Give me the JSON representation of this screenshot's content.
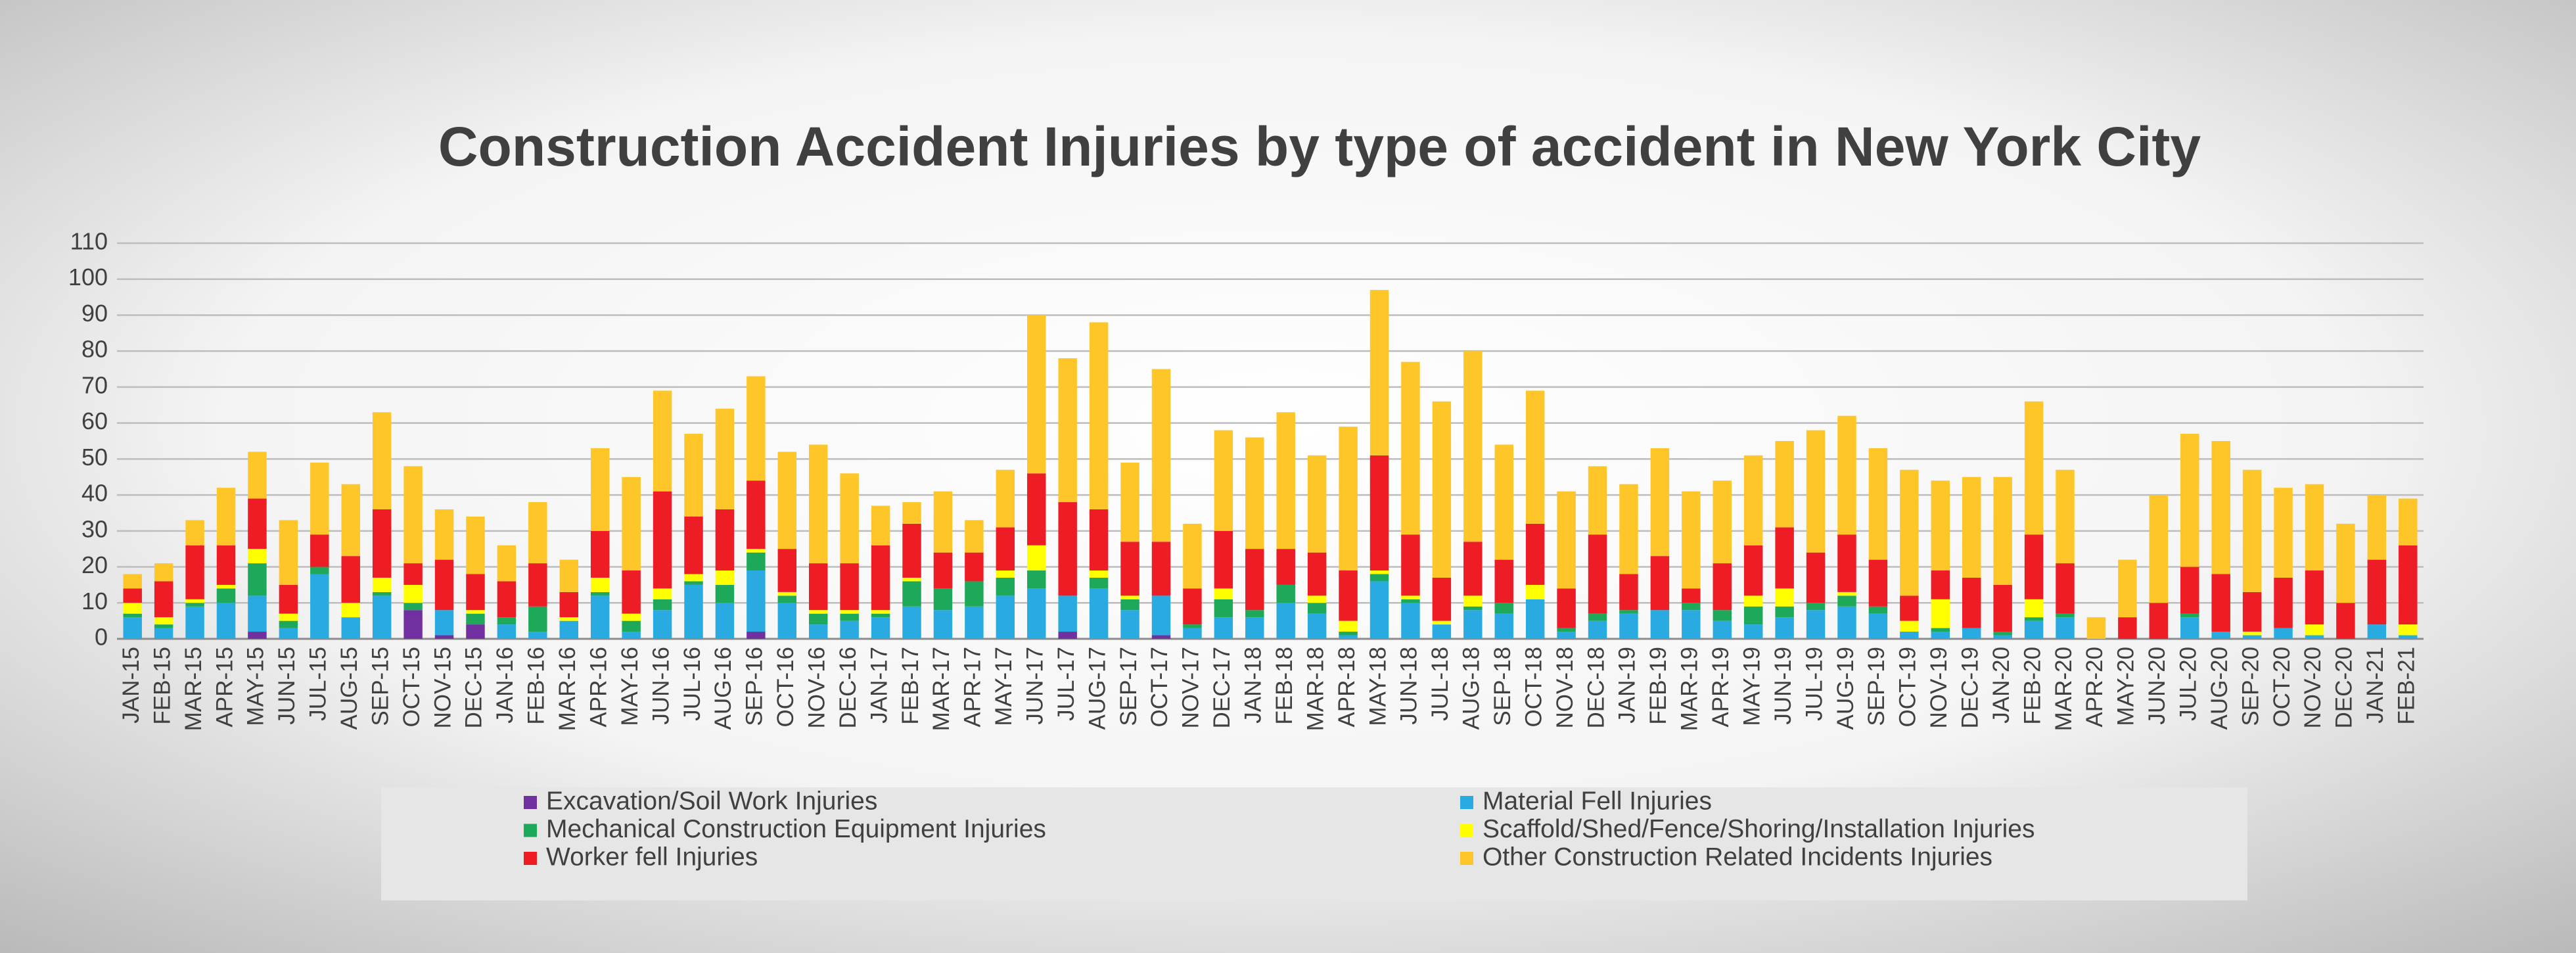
{
  "chart_data": {
    "type": "stacked_bar",
    "title": "Construction Accident Injuries by type of accident in New York City",
    "categories": [
      "JAN-15",
      "FEB-15",
      "MAR-15",
      "APR-15",
      "MAY-15",
      "JUN-15",
      "JUL-15",
      "AUG-15",
      "SEP-15",
      "OCT-15",
      "NOV-15",
      "DEC-15",
      "JAN-16",
      "FEB-16",
      "MAR-16",
      "APR-16",
      "MAY-16",
      "JUN-16",
      "JUL-16",
      "AUG-16",
      "SEP-16",
      "OCT-16",
      "NOV-16",
      "DEC-16",
      "JAN-17",
      "FEB-17",
      "MAR-17",
      "APR-17",
      "MAY-17",
      "JUN-17",
      "JUL-17",
      "AUG-17",
      "SEP-17",
      "OCT-17",
      "NOV-17",
      "DEC-17",
      "JAN-18",
      "FEB-18",
      "MAR-18",
      "APR-18",
      "MAY-18",
      "JUN-18",
      "JUL-18",
      "AUG-18",
      "SEP-18",
      "OCT-18",
      "NOV-18",
      "DEC-18",
      "JAN-19",
      "FEB-19",
      "MAR-19",
      "APR-19",
      "MAY-19",
      "JUN-19",
      "JUL-19",
      "AUG-19",
      "SEP-19",
      "OCT-19",
      "NOV-19",
      "DEC-19",
      "JAN-20",
      "FEB-20",
      "MAR-20",
      "APR-20",
      "MAY-20",
      "JUN-20",
      "JUL-20",
      "AUG-20",
      "SEP-20",
      "OCT-20",
      "NOV-20",
      "DEC-20",
      "JAN-21",
      "FEB-21"
    ],
    "series": [
      {
        "name": "Excavation/Soil Work Injuries",
        "color": "#7030a0",
        "values": [
          0,
          0,
          0,
          0,
          2,
          0,
          0,
          0,
          0,
          8,
          1,
          4,
          0,
          0,
          0,
          0,
          0,
          0,
          0,
          0,
          2,
          0,
          0,
          0,
          0,
          0,
          0,
          0,
          0,
          0,
          2,
          0,
          0,
          1,
          0,
          0,
          0,
          0,
          0,
          0,
          0,
          0,
          0,
          0,
          0,
          0,
          0,
          0,
          0,
          0,
          0,
          0,
          0,
          0,
          0,
          0,
          0,
          0,
          0,
          0,
          0,
          0,
          0,
          0,
          0,
          0,
          0,
          0,
          0,
          0,
          0,
          0,
          0,
          0
        ]
      },
      {
        "name": "Material Fell Injuries",
        "color": "#29abe2",
        "values": [
          6,
          3,
          9,
          10,
          10,
          3,
          18,
          6,
          12,
          0,
          7,
          0,
          4,
          2,
          5,
          12,
          2,
          8,
          15,
          10,
          17,
          10,
          4,
          5,
          6,
          9,
          8,
          9,
          12,
          14,
          10,
          14,
          8,
          11,
          3,
          6,
          6,
          10,
          7,
          1,
          16,
          10,
          4,
          8,
          7,
          11,
          2,
          5,
          7,
          8,
          8,
          5,
          4,
          6,
          8,
          9,
          7,
          2,
          2,
          3,
          1,
          5,
          6,
          0,
          0,
          0,
          6,
          2,
          1,
          3,
          1,
          0,
          4,
          1
        ]
      },
      {
        "name": "Mechanical Construction Equipment Injuries",
        "color": "#1ea85a",
        "values": [
          1,
          1,
          1,
          4,
          9,
          2,
          2,
          0,
          1,
          2,
          0,
          3,
          2,
          7,
          0,
          1,
          3,
          3,
          1,
          5,
          5,
          2,
          3,
          2,
          1,
          7,
          6,
          7,
          5,
          5,
          0,
          3,
          3,
          0,
          1,
          5,
          2,
          5,
          3,
          1,
          2,
          1,
          0,
          1,
          3,
          0,
          1,
          2,
          1,
          0,
          2,
          3,
          5,
          3,
          2,
          3,
          2,
          0,
          1,
          0,
          1,
          1,
          1,
          0,
          0,
          0,
          1,
          0,
          0,
          0,
          0,
          0,
          0,
          0
        ]
      },
      {
        "name": "Scaffold/Shed/Fence/Shoring/Installation Injuries",
        "color": "#ffff00",
        "values": [
          3,
          2,
          1,
          1,
          4,
          2,
          0,
          4,
          4,
          5,
          0,
          1,
          0,
          0,
          1,
          4,
          2,
          3,
          2,
          4,
          1,
          1,
          1,
          1,
          1,
          1,
          0,
          0,
          2,
          7,
          0,
          2,
          1,
          0,
          0,
          3,
          0,
          0,
          2,
          3,
          1,
          1,
          1,
          3,
          0,
          4,
          0,
          0,
          0,
          0,
          0,
          0,
          3,
          5,
          0,
          1,
          0,
          3,
          8,
          0,
          0,
          5,
          0,
          0,
          0,
          0,
          0,
          0,
          1,
          0,
          3,
          0,
          0,
          3
        ]
      },
      {
        "name": "Worker fell Injuries",
        "color": "#ee1c24",
        "values": [
          4,
          10,
          15,
          11,
          14,
          8,
          9,
          13,
          19,
          6,
          14,
          10,
          10,
          12,
          7,
          13,
          12,
          27,
          16,
          17,
          19,
          12,
          13,
          13,
          18,
          15,
          10,
          8,
          12,
          20,
          26,
          17,
          15,
          15,
          10,
          16,
          17,
          10,
          12,
          14,
          32,
          17,
          12,
          15,
          12,
          17,
          11,
          22,
          10,
          15,
          4,
          13,
          14,
          17,
          14,
          16,
          13,
          7,
          8,
          14,
          13,
          18,
          14,
          0,
          6,
          10,
          13,
          16,
          11,
          14,
          15,
          10,
          18,
          22
        ]
      },
      {
        "name": "Other Construction Related Incidents Injuries",
        "color": "#ffc629",
        "values": [
          4,
          5,
          7,
          16,
          13,
          18,
          20,
          20,
          27,
          27,
          14,
          16,
          10,
          17,
          9,
          23,
          26,
          28,
          23,
          28,
          29,
          27,
          33,
          25,
          11,
          6,
          17,
          9,
          16,
          44,
          40,
          52,
          22,
          48,
          18,
          28,
          31,
          38,
          27,
          40,
          46,
          48,
          49,
          53,
          32,
          37,
          27,
          19,
          25,
          30,
          27,
          23,
          25,
          24,
          34,
          33,
          31,
          35,
          25,
          28,
          30,
          37,
          26,
          6,
          16,
          30,
          37,
          37,
          34,
          25,
          24,
          22,
          18,
          13
        ]
      }
    ],
    "ylim": [
      0,
      110
    ],
    "yticks": [
      0,
      10,
      20,
      30,
      40,
      50,
      60,
      70,
      80,
      90,
      100,
      110
    ],
    "grid": true
  }
}
